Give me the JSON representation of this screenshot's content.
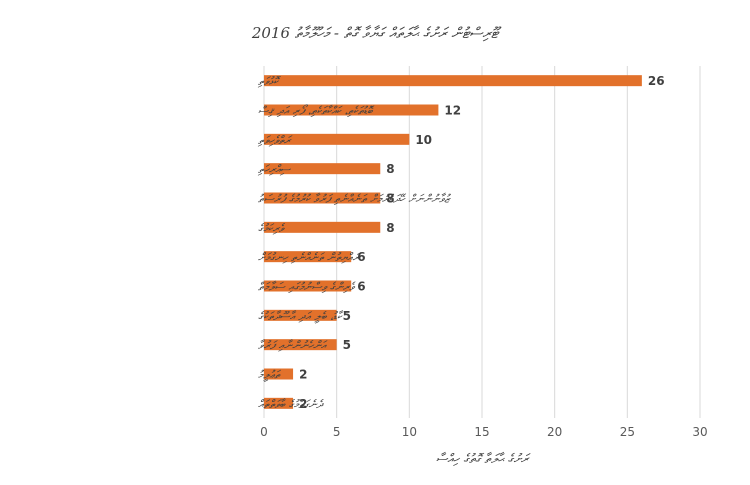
{
  "chart_data": {
    "type": "bar",
    "orientation": "horizontal",
    "title": "ޓޫރިސްޓުން ރަށުގެ ޙާލަތައް ގަޔާވާ ގޮތް - މަހުލޫމާތު 2016",
    "xlabel": "ރަށުގެ ޙާލަތާ ގޮތުގެ ހިއްސާ",
    "ylabel": "",
    "xlim": [
      0,
      30
    ],
    "xticks": [
      0,
      5,
      10,
      15,
      20,
      25,
      30
    ],
    "grid": true,
    "bar_color": "#E2712B",
    "categories": [
      "ކޮޅުވަތި",
      "ބޮޑުތަކެތި، ކައްކާތަކެތި، ފޯރި އަދި ޤިސް",
      "ރަތްވެހިވަތި",
      "ސިއްރިހަތި",
      "ޒުވާނުންނަށް ހޭދަކުރުމަށް ތަނެއްނެތި ފަރުވާ ކުރުމުގެ ފުރުސަތު",
      "ވެރިކަމުގެ",
      "ރައްޔިތުން ތަނެއްނެތި ހިނގުމަށް",
      "ވެރިންގެ ވިސްނުމުގައި ސަލާމަތް",
      "ކާޑު، ބެލީ އަދި އާސޫދާތަކުގެ",
      "އަންހެނުންނާއި ފަރުވާ",
      "ތަޢުލީމު",
      "ދެނެގަތުމުގެ ބާވަތްތައް"
    ],
    "values": [
      26,
      12,
      10,
      8,
      8,
      8,
      6,
      6,
      5,
      5,
      2,
      2
    ],
    "data_labels": [
      "26",
      "12",
      "10",
      "8",
      "8",
      "8",
      "6",
      "6",
      "5",
      "5",
      "2",
      "2"
    ]
  }
}
